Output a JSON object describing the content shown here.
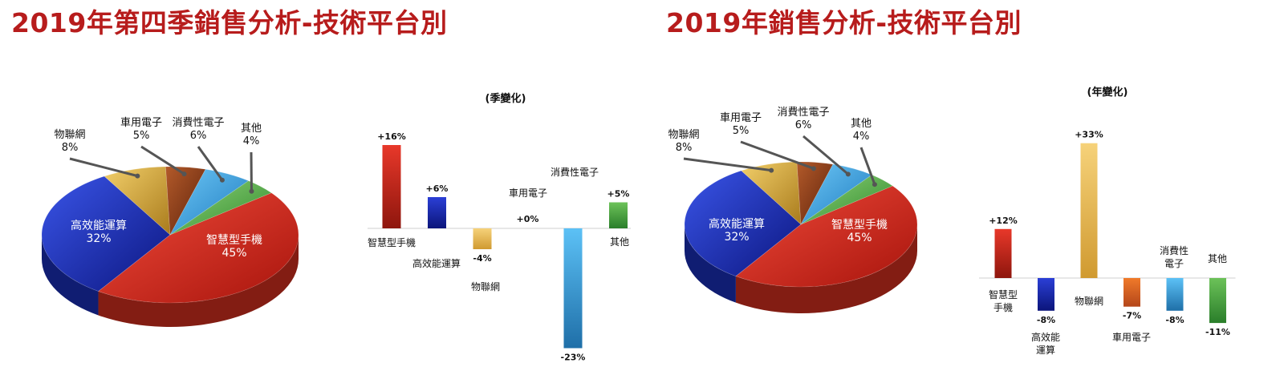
{
  "titles": {
    "left": "2019年第四季銷售分析-技術平台別",
    "right": "2019年銷售分析-技術平台別"
  },
  "colors": {
    "title": "#b71c1c",
    "smartphone": "#d32f1f",
    "hpc": "#1a2fb8",
    "iot": "#d9ad3c",
    "automotive": "#8b3d1a",
    "consumer": "#3ba7e6",
    "other": "#5cb348"
  },
  "chart_data": [
    {
      "type": "pie",
      "categories": [
        "智慧型手機",
        "高效能運算",
        "物聯網",
        "車用電子",
        "消費性電子",
        "其他"
      ],
      "values": [
        45,
        32,
        8,
        5,
        6,
        4
      ],
      "labels": [
        "45%",
        "32%",
        "8%",
        "5%",
        "6%",
        "4%"
      ]
    },
    {
      "type": "bar",
      "subtitle": "(季變化)",
      "categories": [
        "智慧型手機",
        "高效能運算",
        "物聯網",
        "車用電子",
        "消費性電子",
        "其他"
      ],
      "values": [
        16,
        6,
        -4,
        0,
        -23,
        5
      ],
      "labels": [
        "+16%",
        "+6%",
        "-4%",
        "+0%",
        "-23%",
        "+5%"
      ]
    },
    {
      "type": "pie",
      "categories": [
        "智慧型手機",
        "高效能運算",
        "物聯網",
        "車用電子",
        "消費性電子",
        "其他"
      ],
      "values": [
        45,
        32,
        8,
        5,
        6,
        4
      ],
      "labels": [
        "45%",
        "32%",
        "8%",
        "5%",
        "6%",
        "4%"
      ]
    },
    {
      "type": "bar",
      "subtitle": "(年變化)",
      "categories": [
        "智慧型手機",
        "高效能運算",
        "物聯網",
        "車用電子",
        "消費性電子",
        "其他"
      ],
      "category_lines": [
        [
          "智慧型",
          "手機"
        ],
        [
          "高效能",
          "運算"
        ],
        [
          "物聯網"
        ],
        [
          "車用電子"
        ],
        [
          "消費性",
          "電子"
        ],
        [
          "其他"
        ]
      ],
      "values": [
        12,
        -8,
        33,
        -7,
        -8,
        -11
      ],
      "labels": [
        "+12%",
        "-8%",
        "+33%",
        "-7%",
        "-8%",
        "-11%"
      ]
    }
  ]
}
